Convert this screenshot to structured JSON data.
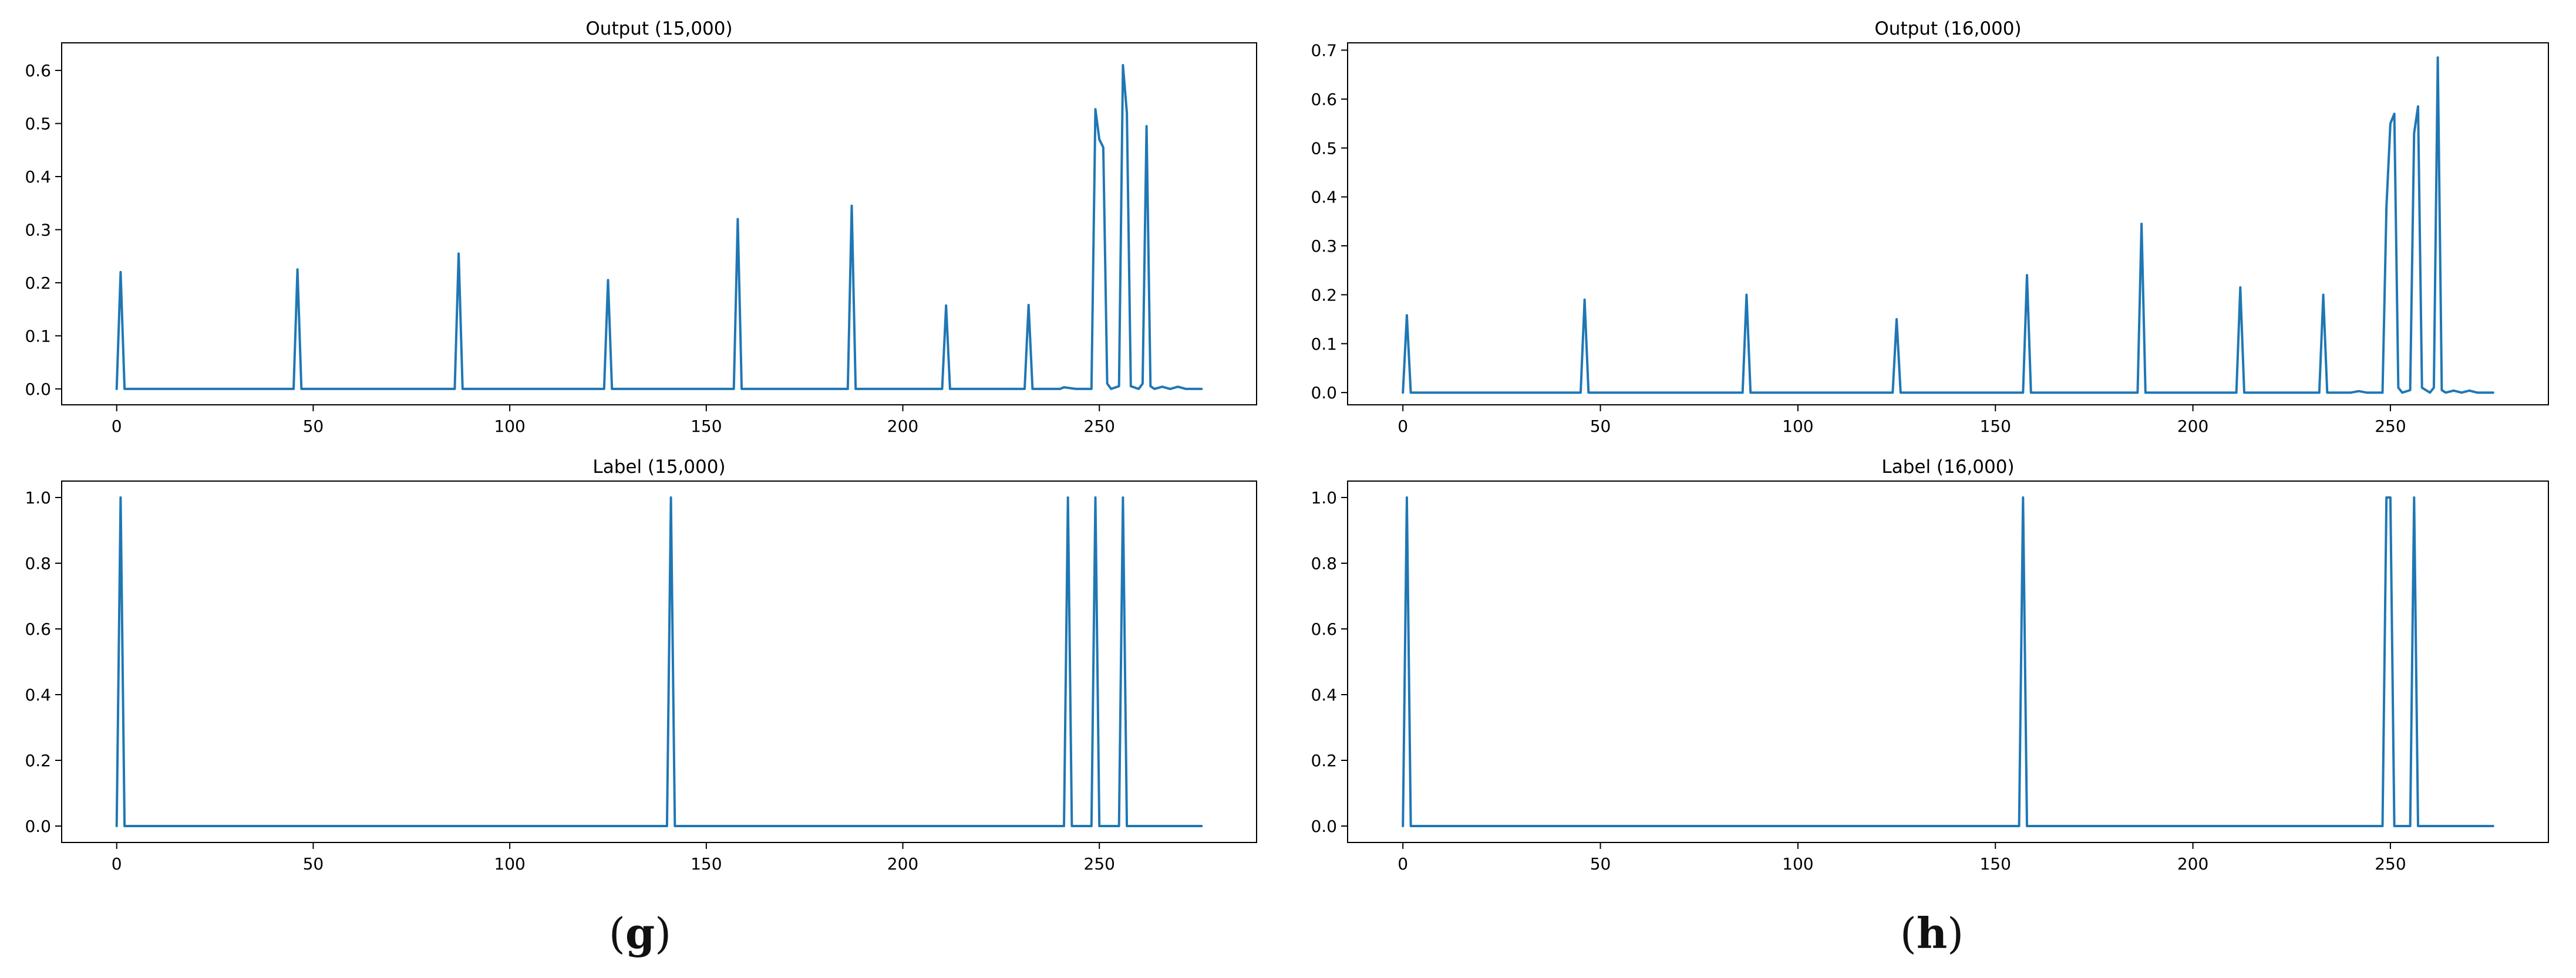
{
  "figure": {
    "captions": [
      {
        "id": "g",
        "open": "(",
        "letter": "g",
        "close": ")"
      },
      {
        "id": "h",
        "open": "(",
        "letter": "h",
        "close": ")"
      }
    ]
  },
  "colors": {
    "line": "#1f77b4",
    "axis": "#000000",
    "text": "#000000"
  },
  "chart_data": [
    {
      "type": "line",
      "title": "Output (15,000)",
      "xlabel": "",
      "ylabel": "",
      "xlim": [
        -14,
        290
      ],
      "ylim": [
        -0.03,
        0.652
      ],
      "xticks": [
        0,
        50,
        100,
        150,
        200,
        250
      ],
      "yticks": [
        0.0,
        0.1,
        0.2,
        0.3,
        0.4,
        0.5,
        0.6
      ],
      "ytick_labels": [
        "0.0",
        "0.1",
        "0.2",
        "0.3",
        "0.4",
        "0.5",
        "0.6"
      ],
      "grid": false,
      "series": [
        {
          "x": [
            0,
            1,
            2,
            45,
            46,
            47,
            86,
            87,
            88,
            124,
            125,
            126,
            157,
            158,
            159,
            186,
            187,
            188,
            210,
            211,
            212,
            231,
            232,
            233,
            240,
            241,
            244,
            248,
            249,
            250,
            251,
            252,
            253,
            255,
            256,
            257,
            258,
            260,
            261,
            262,
            263,
            264,
            266,
            268,
            270,
            272,
            276
          ],
          "y": [
            0.0,
            0.22,
            0.0,
            0.0,
            0.225,
            0.0,
            0.0,
            0.255,
            0.0,
            0.0,
            0.205,
            0.0,
            0.0,
            0.32,
            0.0,
            0.0,
            0.345,
            0.0,
            0.0,
            0.157,
            0.0,
            0.0,
            0.158,
            0.0,
            0.0,
            0.003,
            0.0,
            0.0,
            0.527,
            0.47,
            0.455,
            0.01,
            0.0,
            0.005,
            0.61,
            0.52,
            0.005,
            0.0,
            0.01,
            0.495,
            0.005,
            0.0,
            0.004,
            0.0,
            0.004,
            0.0,
            0.0
          ]
        }
      ]
    },
    {
      "type": "line",
      "title": "Output (16,000)",
      "xlabel": "",
      "ylabel": "",
      "xlim": [
        -14,
        290
      ],
      "ylim": [
        -0.025,
        0.715
      ],
      "xticks": [
        0,
        50,
        100,
        150,
        200,
        250
      ],
      "yticks": [
        0.0,
        0.1,
        0.2,
        0.3,
        0.4,
        0.5,
        0.6,
        0.7
      ],
      "ytick_labels": [
        "0.0",
        "0.1",
        "0.2",
        "0.3",
        "0.4",
        "0.5",
        "0.6",
        "0.7"
      ],
      "grid": false,
      "series": [
        {
          "x": [
            0,
            1,
            2,
            45,
            46,
            47,
            86,
            87,
            88,
            124,
            125,
            126,
            157,
            158,
            159,
            186,
            187,
            188,
            211,
            212,
            213,
            232,
            233,
            234,
            240,
            242,
            244,
            248,
            249,
            250,
            251,
            252,
            253,
            255,
            256,
            257,
            258,
            260,
            261,
            262,
            263,
            264,
            266,
            268,
            270,
            272,
            276
          ],
          "y": [
            0.0,
            0.158,
            0.0,
            0.0,
            0.19,
            0.0,
            0.0,
            0.2,
            0.0,
            0.0,
            0.15,
            0.0,
            0.0,
            0.24,
            0.0,
            0.0,
            0.345,
            0.0,
            0.0,
            0.215,
            0.0,
            0.0,
            0.2,
            0.0,
            0.0,
            0.003,
            0.0,
            0.0,
            0.38,
            0.55,
            0.57,
            0.01,
            0.0,
            0.005,
            0.53,
            0.585,
            0.01,
            0.0,
            0.01,
            0.685,
            0.005,
            0.0,
            0.004,
            0.0,
            0.004,
            0.0,
            0.0
          ]
        }
      ]
    },
    {
      "type": "line",
      "title": "Label (15,000)",
      "xlabel": "",
      "ylabel": "",
      "xlim": [
        -14,
        290
      ],
      "ylim": [
        -0.05,
        1.05
      ],
      "xticks": [
        0,
        50,
        100,
        150,
        200,
        250
      ],
      "yticks": [
        0.0,
        0.2,
        0.4,
        0.6,
        0.8,
        1.0
      ],
      "ytick_labels": [
        "0.0",
        "0.2",
        "0.4",
        "0.6",
        "0.8",
        "1.0"
      ],
      "grid": false,
      "series": [
        {
          "x": [
            0,
            1,
            2,
            140,
            141,
            142,
            241,
            242,
            243,
            248,
            249,
            250,
            255,
            256,
            257,
            276
          ],
          "y": [
            0,
            1,
            0,
            0,
            1,
            0,
            0,
            1,
            0,
            0,
            1,
            0,
            0,
            1,
            0,
            0
          ]
        }
      ]
    },
    {
      "type": "line",
      "title": "Label (16,000)",
      "xlabel": "",
      "ylabel": "",
      "xlim": [
        -14,
        290
      ],
      "ylim": [
        -0.05,
        1.05
      ],
      "xticks": [
        0,
        50,
        100,
        150,
        200,
        250
      ],
      "yticks": [
        0.0,
        0.2,
        0.4,
        0.6,
        0.8,
        1.0
      ],
      "ytick_labels": [
        "0.0",
        "0.2",
        "0.4",
        "0.6",
        "0.8",
        "1.0"
      ],
      "grid": false,
      "series": [
        {
          "x": [
            0,
            1,
            2,
            156,
            157,
            158,
            248,
            249,
            250,
            251,
            255,
            256,
            257,
            276
          ],
          "y": [
            0,
            1,
            0,
            0,
            1,
            0,
            0,
            1,
            1,
            0,
            0,
            1,
            0,
            0
          ]
        }
      ]
    }
  ]
}
